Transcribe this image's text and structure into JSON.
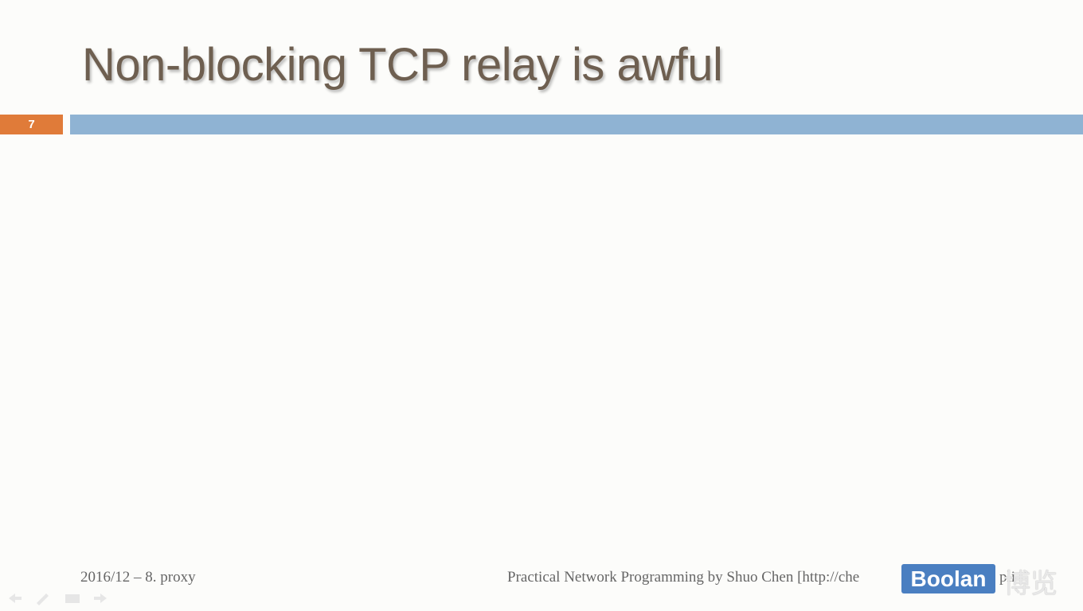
{
  "slide": {
    "title": "Non-blocking TCP relay is awful",
    "number": "7",
    "footer_left": "2016/12 – 8. proxy",
    "footer_right": "Practical Network Programming by Shuo Chen [http://che",
    "footer_right_tail": "pli"
  },
  "watermark": {
    "brand": "Boolan",
    "chinese": "博览"
  }
}
